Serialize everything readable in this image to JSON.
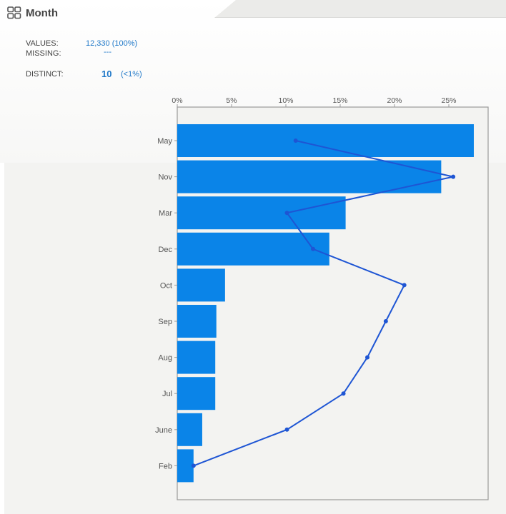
{
  "header": {
    "title": "Month",
    "icon": "grid-icon",
    "values_label": "VALUES:",
    "values_value": "12,330 (100%)",
    "missing_label": "MISSING:",
    "missing_value": "---",
    "distinct_label": "DISTINCT:",
    "distinct_value": "10",
    "distinct_pct": "(<1%)"
  },
  "colors": {
    "bar": "#0a84e8",
    "line": "#1e55d4",
    "accent_text": "#1f78c8"
  },
  "chart_data": {
    "type": "bar",
    "orientation": "horizontal",
    "categories": [
      "May",
      "Nov",
      "Mar",
      "Dec",
      "Oct",
      "Sep",
      "Aug",
      "Jul",
      "June",
      "Feb"
    ],
    "x_ticks": [
      "0%",
      "5%",
      "10%",
      "15%",
      "20%",
      "25%"
    ],
    "xlim": [
      0,
      28.5
    ],
    "series": [
      {
        "type": "bar",
        "values": [
          27.3,
          24.3,
          15.5,
          14.0,
          4.4,
          3.6,
          3.5,
          3.5,
          2.3,
          1.5
        ]
      },
      {
        "type": "line",
        "values": [
          10.9,
          25.4,
          10.1,
          12.5,
          20.9,
          19.2,
          17.5,
          15.3,
          10.1,
          1.5
        ]
      }
    ],
    "grid": false
  }
}
